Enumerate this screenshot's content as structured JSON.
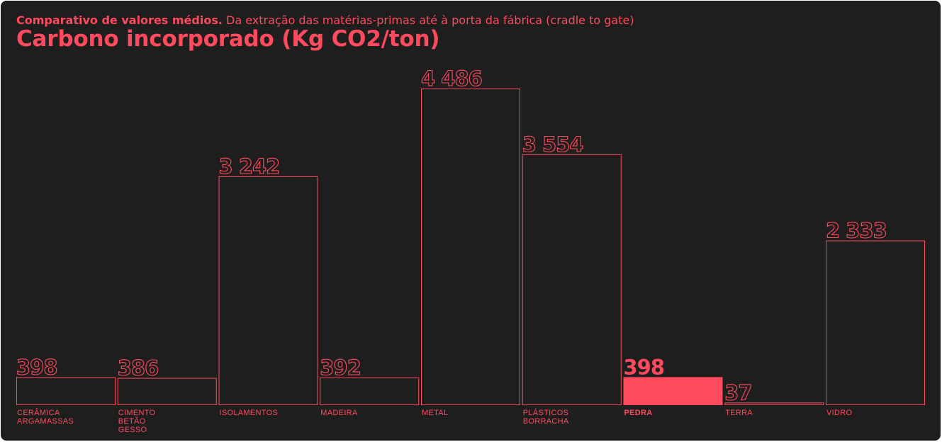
{
  "header": {
    "subtitle_bold": "Comparativo de valores médios.",
    "subtitle_rest": " Da extração das matérias-primas até à porta da fábrica (cradle to gate)",
    "title": "Carbono incorporado (Kg CO2/ton)"
  },
  "colors": {
    "background": "#1f1e1f",
    "accent": "#ff4a5e"
  },
  "chart_data": {
    "type": "bar",
    "title": "Carbono incorporado (Kg CO2/ton)",
    "subtitle": "Comparativo de valores médios. Da extração das matérias-primas até à porta da fábrica (cradle to gate)",
    "categories": [
      [
        "CERÂMICA",
        "ARGAMASSAS"
      ],
      [
        "CIMENTO",
        "BETÃO",
        "GESSO"
      ],
      [
        "ISOLAMENTOS"
      ],
      [
        "MADEIRA"
      ],
      [
        "METAL"
      ],
      [
        "PLÁSTICOS",
        "BORRACHA"
      ],
      [
        "PEDRA"
      ],
      [
        "TERRA"
      ],
      [
        "VIDRO"
      ]
    ],
    "values": [
      398,
      386,
      3242,
      392,
      4486,
      3554,
      398,
      37,
      2333
    ],
    "value_labels": [
      "398",
      "386",
      "3 242",
      "392",
      "4 486",
      "3 554",
      "398",
      "37",
      "2 333"
    ],
    "highlighted_category": "PEDRA",
    "ylim": [
      0,
      4486
    ],
    "xlabel": "",
    "ylabel": "",
    "grid": false,
    "legend": "none"
  }
}
